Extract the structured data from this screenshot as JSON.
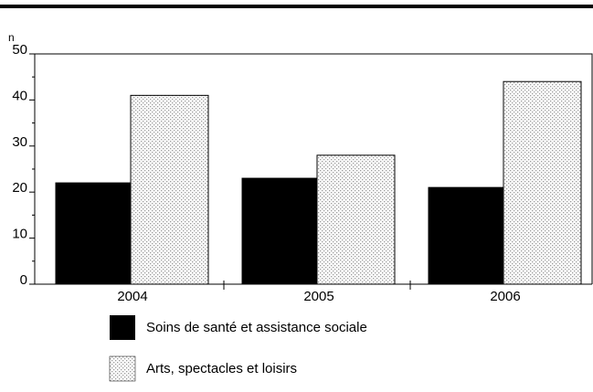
{
  "chart_data": {
    "type": "bar",
    "y_label": "n",
    "categories": [
      "2004",
      "2005",
      "2006"
    ],
    "series": [
      {
        "name": "Soins de santé et assistance sociale",
        "color": "#000000",
        "values": [
          22,
          23,
          21
        ]
      },
      {
        "name": "Arts, spectacles et loisirs",
        "color": "#9a9a9a",
        "values": [
          41,
          28,
          44
        ]
      }
    ],
    "ylim": [
      0,
      50
    ],
    "yticks": [
      0,
      10,
      20,
      30,
      40,
      50
    ]
  }
}
